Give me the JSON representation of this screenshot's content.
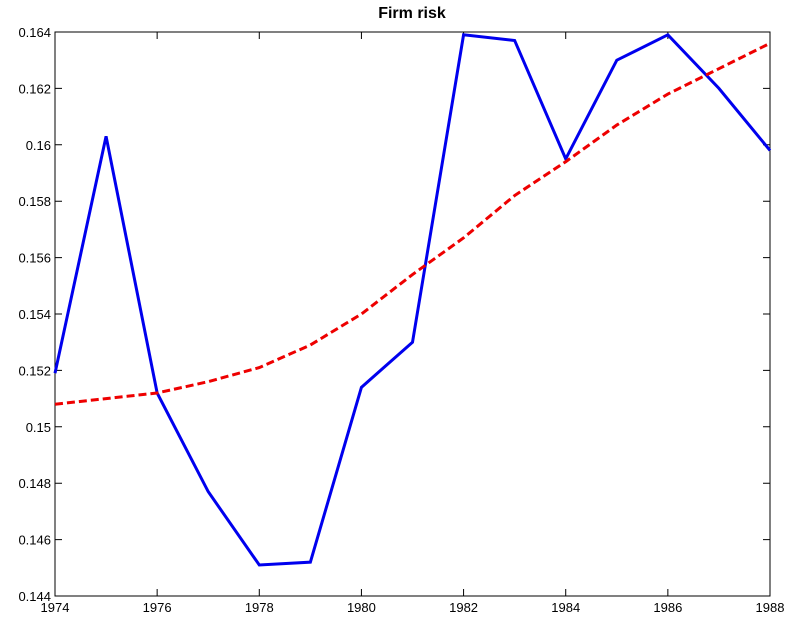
{
  "chart_data": {
    "type": "line",
    "title": "Firm risk",
    "x": [
      1974,
      1975,
      1976,
      1977,
      1978,
      1979,
      1980,
      1981,
      1982,
      1983,
      1984,
      1985,
      1986,
      1987,
      1988
    ],
    "series": [
      {
        "color": "#0000ee",
        "dash": false,
        "values": [
          0.1519,
          0.1603,
          0.1512,
          0.1477,
          0.1451,
          0.1452,
          0.1514,
          0.153,
          0.1639,
          0.1637,
          0.1595,
          0.163,
          0.1639,
          0.162,
          0.1598
        ]
      },
      {
        "color": "#ee0000",
        "dash": true,
        "values": [
          0.1508,
          0.151,
          0.1512,
          0.1516,
          0.1521,
          0.1529,
          0.154,
          0.1554,
          0.1567,
          0.1582,
          0.1594,
          0.1607,
          0.1618,
          0.1627,
          0.1636
        ]
      }
    ],
    "xlim": [
      1974,
      1988
    ],
    "xticks": [
      1974,
      1976,
      1978,
      1980,
      1982,
      1984,
      1986,
      1988
    ],
    "ylim": [
      0.144,
      0.164
    ],
    "yticks": [
      0.144,
      0.146,
      0.148,
      0.15,
      0.152,
      0.154,
      0.156,
      0.158,
      0.16,
      0.162,
      0.164
    ]
  }
}
